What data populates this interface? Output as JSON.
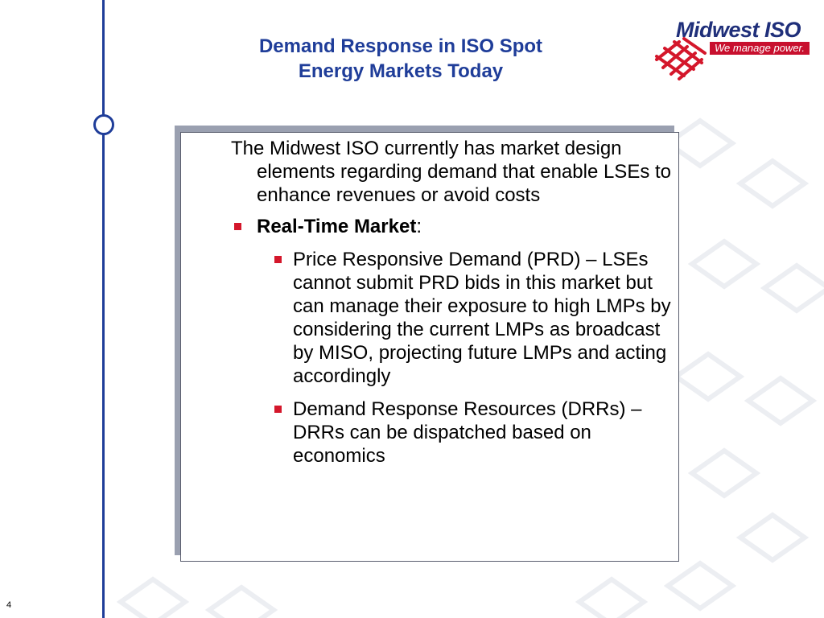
{
  "slide": {
    "title_line1": "Demand Response in ISO Spot",
    "title_line2": "Energy Markets Today",
    "page_number": "4"
  },
  "logo": {
    "brand": "Midwest ISO",
    "tagline": "We manage power."
  },
  "content": {
    "intro": "The Midwest ISO currently has market design elements regarding demand that enable LSEs to enhance revenues or avoid costs",
    "section_label": "Real-Time Market",
    "section_suffix": ":",
    "sub_items": [
      "Price Responsive Demand (PRD) – LSEs cannot submit PRD bids in this market but can manage their exposure to high LMPs by considering the current LMPs as broadcast by MISO, projecting future LMPs and acting accordingly",
      "Demand Response Resources (DRRs) – DRRs can be dispatched based on economics"
    ]
  },
  "colors": {
    "title": "#1f3d99",
    "accent_rule": "#1f3d99",
    "bullet": "#d4172b",
    "logo_red": "#c8102e"
  }
}
